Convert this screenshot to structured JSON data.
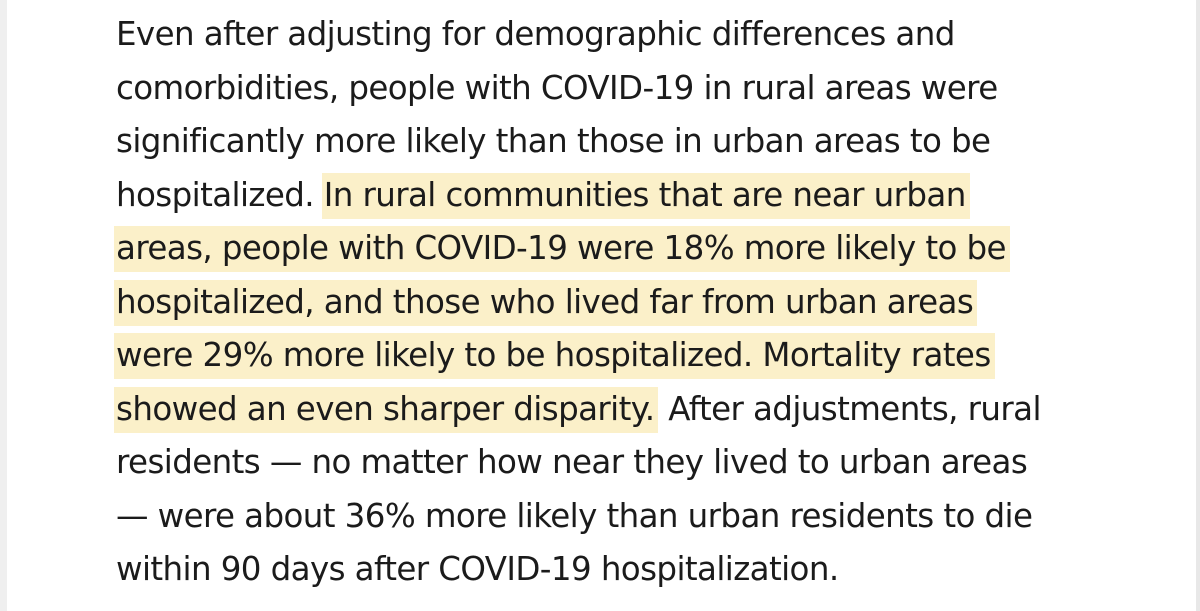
{
  "article": {
    "lines_before": [
      "Even after adjusting for demographic differences and",
      "comorbidities, people with COVID-19 in rural areas were",
      "significantly more likely than those in urban areas to be",
      "hospitalized."
    ],
    "highlighted_lines": [
      "In rural communities that are near urban",
      "areas, people with COVID-19 were 18% more likely to be",
      "hospitalized, and those who lived far from urban areas",
      "were 29% more likely to be hospitalized. Mortality rates",
      "showed an even sharper disparity."
    ],
    "lines_after": [
      "After adjustments, rural",
      "residents — no matter how near they lived to urban areas",
      "— were about 36% more likely than urban residents to die",
      "within 90 days after COVID-19 hospitalization."
    ]
  },
  "colors": {
    "highlight": "#fbf0c9",
    "text": "#1b1b1b"
  }
}
